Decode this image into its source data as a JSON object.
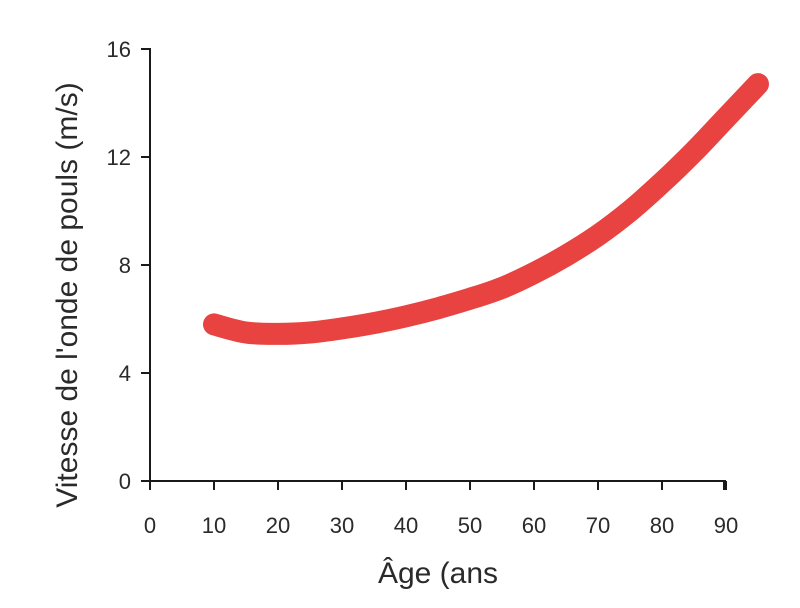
{
  "chart_data": {
    "type": "line",
    "xlabel": "Âge (ans",
    "ylabel": "Vitesse de l'onde de pouls (m/s)",
    "xlim": [
      0,
      90
    ],
    "ylim": [
      0,
      16
    ],
    "x_ticks": [
      0,
      10,
      20,
      30,
      40,
      50,
      60,
      70,
      80,
      90
    ],
    "y_ticks": [
      0,
      4,
      8,
      12,
      16
    ],
    "grid": false,
    "series": [
      {
        "color": "#e84340",
        "x": [
          10,
          15,
          20,
          25,
          30,
          35,
          40,
          45,
          50,
          55,
          60,
          65,
          70,
          75,
          80,
          85,
          90,
          95
        ],
        "y": [
          5.8,
          5.5,
          5.45,
          5.5,
          5.65,
          5.85,
          6.1,
          6.4,
          6.75,
          7.15,
          7.7,
          8.35,
          9.1,
          10.0,
          11.05,
          12.2,
          13.45,
          14.7
        ]
      }
    ]
  }
}
